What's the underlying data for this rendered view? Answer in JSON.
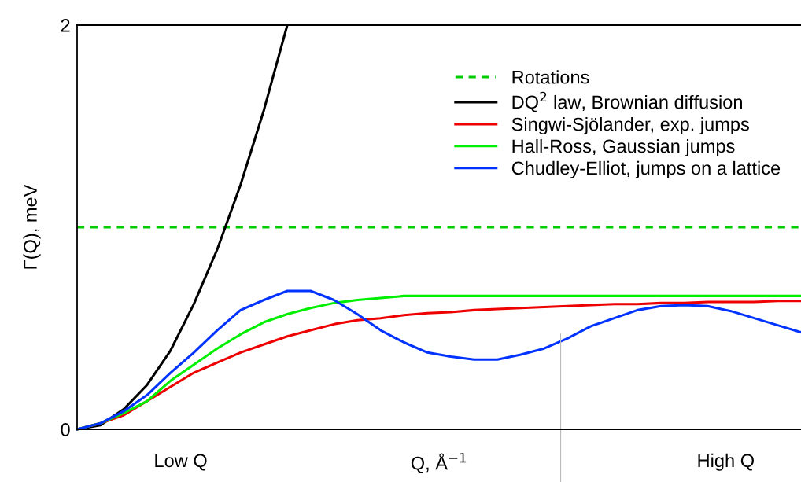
{
  "chart_data": {
    "type": "line",
    "xlabel": "Q, Å$^{−1}$",
    "ylabel": "Γ(Q), meV",
    "categories": [
      null,
      null,
      null,
      null,
      null,
      null,
      null,
      null,
      null,
      null,
      null,
      null,
      null,
      null,
      null,
      null,
      null,
      null,
      null,
      null,
      null,
      null,
      null,
      null,
      null,
      null,
      null,
      null,
      null,
      null,
      null,
      null
    ],
    "ylim": [
      0,
      2
    ],
    "yticks": [
      0,
      2
    ],
    "tick_labels": "y",
    "legend": "top right",
    "line_style": "solid",
    "marker": "none",
    "ref_lines": [
      {
        "axis": "y",
        "value": 1.0,
        "label": "Rotations",
        "color": "#00cc00",
        "line_style": "dashed"
      }
    ],
    "annotations": [
      "Low Q",
      "High Q"
    ],
    "series": [
      {
        "name": "DQ$^{2}$ law, Brownian diffusion",
        "color": "#000000",
        "values": [
          0,
          0.02,
          0.1,
          0.22,
          0.39,
          0.62,
          0.89,
          1.21,
          1.58,
          2.0,
          null,
          null,
          null,
          null,
          null,
          null,
          null,
          null,
          null,
          null,
          null,
          null,
          null,
          null,
          null,
          null,
          null,
          null,
          null,
          null,
          null,
          null
        ]
      },
      {
        "name": "Singwi-Sjölander, exp. jumps",
        "color": "#ee0000",
        "values": [
          0,
          0.03,
          0.07,
          0.14,
          0.21,
          0.28,
          0.33,
          0.38,
          0.42,
          0.46,
          0.49,
          0.52,
          0.54,
          0.55,
          0.565,
          0.575,
          0.58,
          0.59,
          0.595,
          0.6,
          0.605,
          0.61,
          0.615,
          0.62,
          0.62,
          0.625,
          0.625,
          0.63,
          0.63,
          0.63,
          0.635,
          0.635
        ]
      },
      {
        "name": "Hall-Ross, Gaussian jumps",
        "color": "#00ee00",
        "values": [
          0,
          0.03,
          0.08,
          0.14,
          0.24,
          0.32,
          0.4,
          0.47,
          0.53,
          0.57,
          0.6,
          0.625,
          0.64,
          0.65,
          0.66,
          0.66,
          0.66,
          0.66,
          0.66,
          0.66,
          0.66,
          0.66,
          0.66,
          0.66,
          0.66,
          0.66,
          0.66,
          0.66,
          0.66,
          0.66,
          0.66,
          0.66
        ]
      },
      {
        "name": "Chudley-Elliot, jumps on a lattice",
        "color": "#0033ff",
        "values": [
          0,
          0.03,
          0.09,
          0.17,
          0.28,
          0.38,
          0.49,
          0.59,
          0.64,
          0.685,
          0.685,
          0.64,
          0.57,
          0.49,
          0.43,
          0.38,
          0.36,
          0.345,
          0.345,
          0.37,
          0.4,
          0.45,
          0.51,
          0.55,
          0.59,
          0.61,
          0.615,
          0.61,
          0.585,
          0.55,
          0.515,
          0.48
        ]
      }
    ]
  }
}
